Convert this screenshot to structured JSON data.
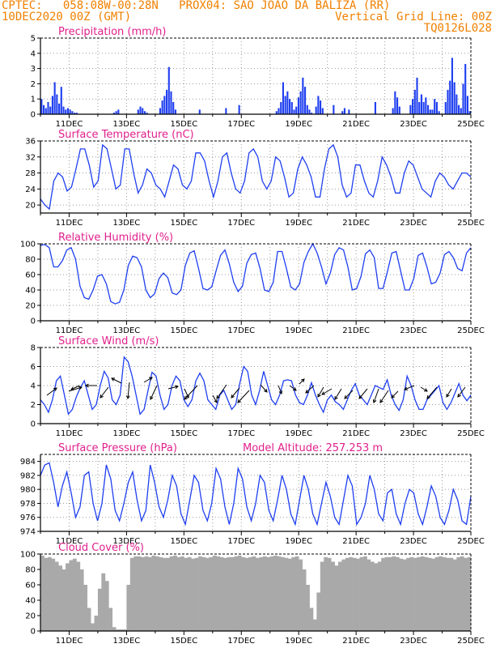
{
  "header": {
    "left_line1": "CPTEC:   058:08W-00:28N   PROX04: SAO JOAO DA BALIZA (RR)",
    "left_line2": "10DEC2020 00Z (GMT)",
    "right_line2": "Vertical Grid Line: 00Z",
    "right_line3": "TQ0126L028"
  },
  "colors": {
    "header": "#f08000",
    "title": "#e0208c",
    "series": "#1f3ff0",
    "cloud": "#a9a9a9",
    "wind_arrow": "#000000"
  },
  "x_labels": [
    "11DEC",
    "13DEC",
    "15DEC",
    "17DEC",
    "19DEC",
    "21DEC",
    "23DEC",
    "25DEC"
  ],
  "chart_data": [
    {
      "id": "precip",
      "type": "bar",
      "title": "Precipitation (mm/h)",
      "x_range": [
        "10DEC2020 00Z",
        "25DEC2020 00Z"
      ],
      "x_step_hours": 3,
      "ylim": [
        0,
        5
      ],
      "yticks": [
        0,
        1,
        2,
        3,
        4,
        5
      ],
      "grid": true,
      "values": [
        1.0,
        0.6,
        0.4,
        0.8,
        0.5,
        1.2,
        2.1,
        1.3,
        0.7,
        1.8,
        0.5,
        0.3,
        0.4,
        0.3,
        0.2,
        0.1,
        0.1,
        0,
        0,
        0,
        0,
        0,
        0,
        0,
        0,
        0,
        0,
        0,
        0,
        0,
        0,
        0,
        0,
        0.1,
        0.2,
        0.3,
        0,
        0,
        0,
        0,
        0,
        0,
        0,
        0,
        0.3,
        0.5,
        0.4,
        0.2,
        0.1,
        0,
        0,
        0,
        0,
        0,
        0.4,
        0.9,
        1.2,
        1.6,
        3.1,
        1.5,
        0.8,
        0.3,
        0,
        0,
        0,
        0,
        0,
        0,
        0,
        0,
        0,
        0,
        0.3,
        0,
        0,
        0,
        0,
        0,
        0,
        0,
        0,
        0,
        0,
        0,
        0.4,
        0,
        0,
        0,
        0,
        0,
        0.6,
        0,
        0,
        0,
        0,
        0,
        0,
        0,
        0,
        0,
        0,
        0,
        0,
        0,
        0,
        0,
        0,
        0.2,
        0.4,
        0.8,
        2.1,
        1.2,
        1.5,
        1.0,
        0.8,
        0.3,
        0.5,
        1.1,
        1.5,
        2.4,
        1.8,
        0.6,
        0.3,
        0.1,
        0,
        0.5,
        1.2,
        0.9,
        0.4,
        0,
        0,
        0,
        0,
        0.6,
        0,
        0,
        0,
        0.2,
        0.4,
        0,
        0.3,
        0,
        0,
        0,
        0,
        0,
        0,
        0,
        0,
        0,
        0,
        0,
        0.8,
        0,
        0,
        0,
        0,
        0,
        0,
        0,
        0.4,
        1.5,
        1.1,
        0.5,
        0,
        0,
        0,
        0,
        0.6,
        1.0,
        1.6,
        2.4,
        0.8,
        1.3,
        0.8,
        1.1,
        0.6,
        0.3,
        0.3,
        1.0,
        0.8,
        0.2,
        0,
        0,
        0.8,
        1.6,
        2.2,
        3.7,
        2.1,
        1.3,
        0.6,
        0.4,
        2.0,
        3.3,
        1.2,
        0.2
      ]
    },
    {
      "id": "temp",
      "type": "line",
      "title": "Surface Temperature (nC)",
      "ylim": [
        18,
        36
      ],
      "yticks": [
        20,
        24,
        28,
        32,
        36
      ],
      "grid": true,
      "values": [
        21.5,
        20,
        19,
        26,
        28,
        27,
        23.5,
        24.5,
        29,
        34,
        34,
        30,
        24.5,
        26,
        35,
        34,
        29,
        24,
        25,
        34,
        34,
        28,
        23,
        25,
        29,
        28,
        25,
        24,
        22,
        26,
        30,
        29,
        25,
        24,
        26,
        33,
        33,
        31,
        26,
        22,
        26,
        32,
        33,
        28,
        24,
        23,
        26,
        33,
        34,
        32,
        26,
        24,
        26,
        32,
        31,
        27,
        22,
        23,
        29,
        32,
        30,
        27,
        22,
        22,
        29,
        34,
        35,
        32,
        25,
        22,
        23,
        30,
        30,
        26,
        23,
        22,
        26,
        32,
        30,
        27,
        23,
        23,
        28,
        31,
        30,
        27,
        24,
        23,
        22,
        26,
        28,
        27,
        25,
        24,
        26,
        28,
        28,
        27
      ]
    },
    {
      "id": "rh",
      "type": "line",
      "title": "Relative Humidity (%)",
      "ylim": [
        0,
        100
      ],
      "yticks": [
        0,
        20,
        40,
        60,
        80,
        100
      ],
      "grid": true,
      "values": [
        98,
        99,
        95,
        70,
        70,
        78,
        92,
        95,
        80,
        45,
        30,
        28,
        40,
        58,
        60,
        48,
        25,
        22,
        24,
        40,
        72,
        84,
        82,
        70,
        40,
        30,
        35,
        55,
        62,
        56,
        36,
        34,
        40,
        72,
        88,
        91,
        68,
        42,
        40,
        44,
        65,
        85,
        92,
        74,
        50,
        38,
        45,
        75,
        86,
        88,
        68,
        40,
        38,
        50,
        90,
        90,
        68,
        44,
        40,
        48,
        76,
        90,
        100,
        88,
        70,
        48,
        62,
        86,
        95,
        92,
        70,
        40,
        42,
        58,
        87,
        92,
        82,
        42,
        42,
        64,
        88,
        90,
        65,
        40,
        40,
        55,
        85,
        88,
        70,
        48,
        50,
        62,
        86,
        90,
        82,
        68,
        65,
        88,
        95
      ]
    },
    {
      "id": "wind",
      "type": "line",
      "title": "Surface Wind (m/s)",
      "ylim": [
        0,
        8
      ],
      "yticks": [
        0,
        2,
        4,
        6,
        8
      ],
      "grid": true,
      "values": [
        2.5,
        2,
        1.2,
        2.5,
        4.5,
        5,
        3,
        1,
        1.5,
        2.8,
        3.8,
        4.5,
        3,
        1.5,
        2,
        4,
        5.5,
        4.8,
        2.5,
        2,
        3,
        7,
        6.5,
        5,
        3,
        1,
        1.5,
        3.5,
        5.4,
        5,
        3,
        1.5,
        2,
        4,
        5,
        4.5,
        2.5,
        1.8,
        2.5,
        4.5,
        5.3,
        4.5,
        2.5,
        2,
        1.5,
        3,
        3.5,
        2.5,
        1.5,
        2,
        4.2,
        6,
        5.5,
        3,
        2,
        3.5,
        5.5,
        4,
        2.5,
        2,
        3,
        4.5,
        4.6,
        4.5,
        3,
        2.2,
        2,
        3,
        4.3,
        3,
        2,
        1.2,
        2.5,
        3,
        2.3,
        2,
        1.5,
        2.5,
        3.5,
        4.2,
        3,
        2.5,
        2,
        3,
        4,
        3.8,
        3.6,
        4.6,
        3,
        2,
        1.4,
        2.5,
        5,
        4,
        2.5,
        1.5,
        1.5,
        2.5,
        3,
        3.5,
        4,
        2.2,
        1.5,
        2.2,
        3.2,
        4.2,
        3,
        2.4,
        3
      ]
    },
    {
      "id": "pressure",
      "type": "line",
      "title": "Surface Pressure (hPa)",
      "annotation": "Model Altitude: 257.253 m",
      "ylim": [
        974,
        985
      ],
      "yticks": [
        974,
        976,
        978,
        980,
        982,
        984
      ],
      "grid": true,
      "values": [
        982,
        983.5,
        983.8,
        981,
        977.5,
        980.5,
        982.5,
        979.5,
        976,
        977.5,
        982,
        982.5,
        978,
        975.5,
        978,
        983.5,
        981.5,
        977,
        975.5,
        978,
        981,
        982.5,
        978.5,
        975.5,
        977,
        983.5,
        981,
        977.5,
        976,
        978.5,
        982,
        980.5,
        976.5,
        975,
        978.5,
        982,
        981,
        977,
        975.5,
        978,
        983,
        981.5,
        977.5,
        975,
        978,
        983,
        981.5,
        977.5,
        975.5,
        978,
        982,
        981,
        977,
        975.5,
        978.5,
        982,
        980,
        976.5,
        975,
        978.5,
        982,
        980,
        976.5,
        975,
        978,
        981,
        979,
        976,
        975,
        978.5,
        982,
        980.5,
        975,
        976,
        978,
        982,
        980,
        976.5,
        975.5,
        979.5,
        980,
        976.5,
        975,
        978,
        980,
        979.5,
        976.5,
        975,
        977.5,
        980.5,
        979,
        976,
        975,
        977,
        980,
        978.5,
        975.5,
        975,
        979
      ]
    },
    {
      "id": "cloud",
      "type": "area",
      "title": "Cloud Cover (%)",
      "ylim": [
        0,
        100
      ],
      "yticks": [
        0,
        20,
        40,
        60,
        80,
        100
      ],
      "grid": false,
      "values": [
        98,
        95,
        96,
        94,
        90,
        85,
        80,
        88,
        92,
        94,
        90,
        80,
        60,
        30,
        10,
        20,
        55,
        75,
        65,
        30,
        5,
        2,
        2,
        2,
        60,
        95,
        97,
        97,
        96,
        97,
        96,
        98,
        97,
        96,
        95,
        95,
        97,
        98,
        96,
        97,
        95,
        96,
        94,
        95,
        97,
        96,
        95,
        96,
        98,
        97,
        96,
        95,
        96,
        96,
        97,
        98,
        96,
        95,
        96,
        97,
        95,
        96,
        97,
        96,
        97,
        98,
        97,
        96,
        95,
        94,
        96,
        97,
        93,
        80,
        60,
        30,
        15,
        50,
        90,
        96,
        95,
        90,
        85,
        90,
        93,
        95,
        96,
        95,
        94,
        96,
        97,
        93,
        90,
        88,
        90,
        95,
        96,
        96,
        97,
        96,
        94,
        93,
        95,
        96,
        95,
        96,
        97,
        96,
        95,
        94,
        96,
        97,
        96,
        95,
        95,
        93,
        96,
        97,
        95,
        96
      ]
    }
  ]
}
